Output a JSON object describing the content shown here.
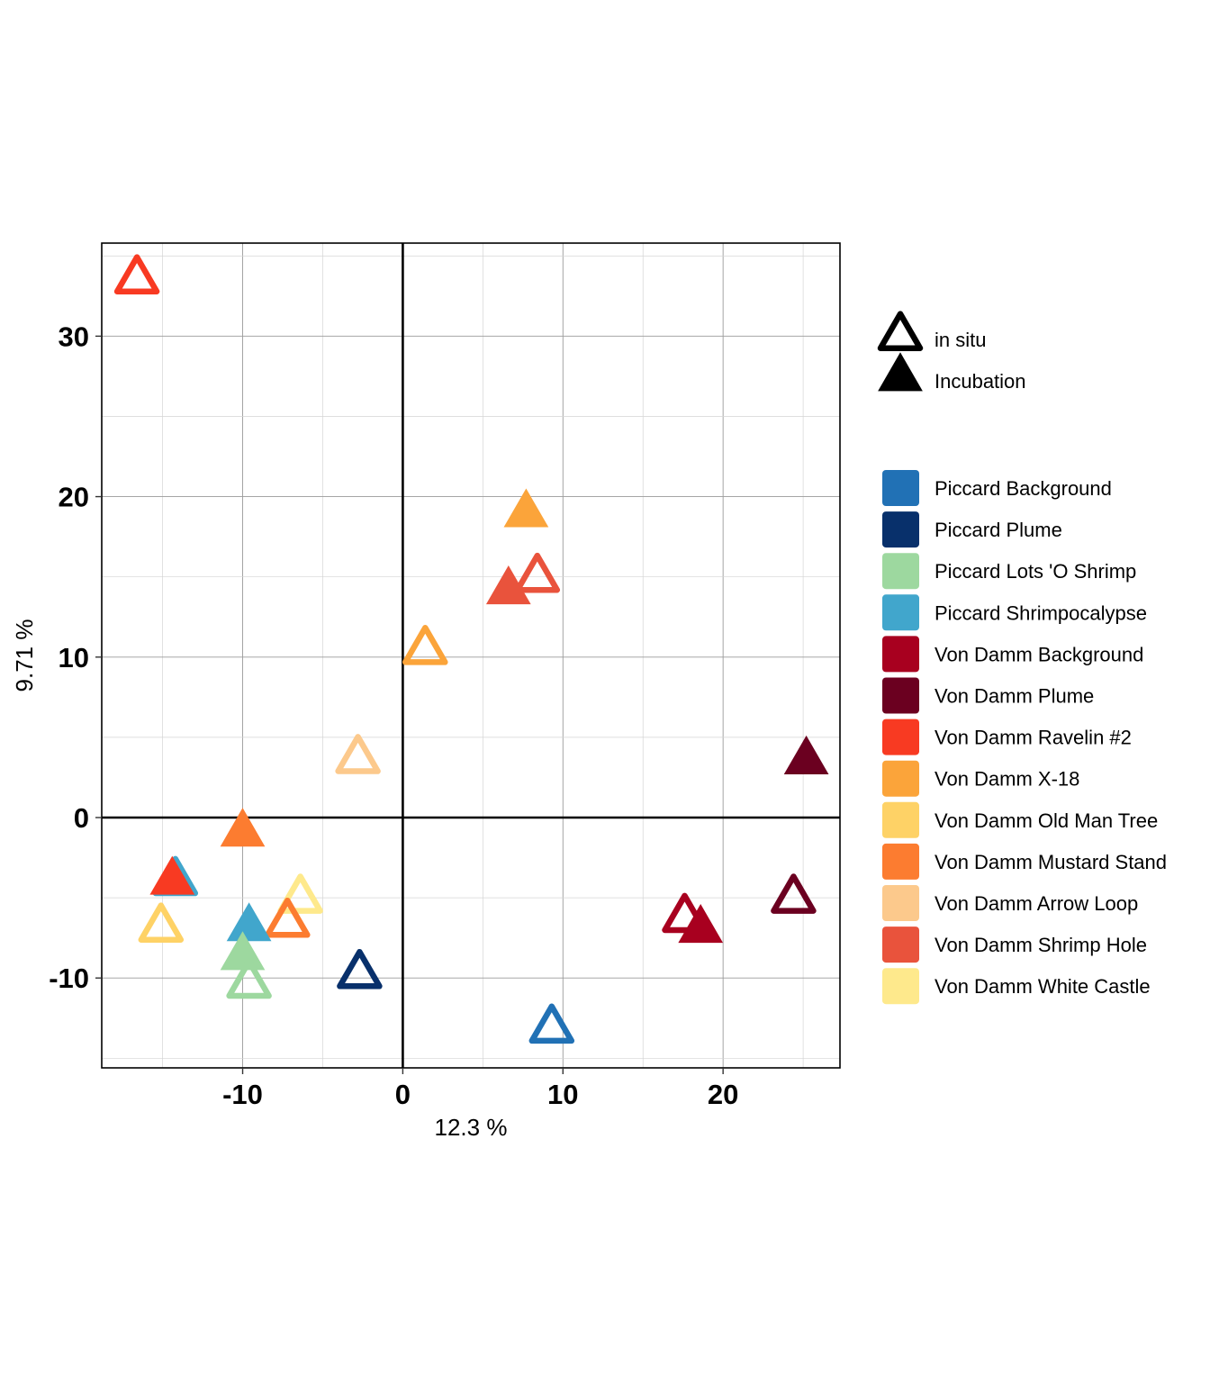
{
  "chart_data": {
    "type": "scatter",
    "xlabel": "12.3 %",
    "ylabel": "9.71 %",
    "xlim": [
      -18.8,
      27.3
    ],
    "ylim": [
      -15.6,
      35.8
    ],
    "x_ticks": [
      -10,
      0,
      10,
      20
    ],
    "y_ticks": [
      -10,
      0,
      10,
      20,
      30
    ],
    "x_tick_labels": [
      "-10",
      "0",
      "10",
      "20"
    ],
    "y_tick_labels": [
      "-10",
      "0",
      "10",
      "20",
      "30"
    ],
    "grid": true,
    "legend_position": "right",
    "shape_legend": [
      {
        "label": "in situ",
        "shape": "open-triangle"
      },
      {
        "label": "Incubation",
        "shape": "filled-triangle"
      }
    ],
    "groups": [
      {
        "name": "Piccard Background",
        "color": "#2171B5"
      },
      {
        "name": "Piccard Plume",
        "color": "#08306B"
      },
      {
        "name": "Piccard Lots 'O Shrimp",
        "color": "#9DD89F"
      },
      {
        "name": "Piccard Shrimpocalypse",
        "color": "#41A6CC"
      },
      {
        "name": "Von Damm Background",
        "color": "#A8001F"
      },
      {
        "name": "Von Damm Plume",
        "color": "#6B0020"
      },
      {
        "name": "Von Damm Ravelin #2",
        "color": "#F83A22"
      },
      {
        "name": "Von Damm X-18",
        "color": "#FBA43A"
      },
      {
        "name": "Von Damm Old Man Tree",
        "color": "#FED266"
      },
      {
        "name": "Von Damm Mustard Stand",
        "color": "#FC7C30"
      },
      {
        "name": "Von Damm Arrow Loop",
        "color": "#FCC98C"
      },
      {
        "name": "Von Damm Shrimp Hole",
        "color": "#E9533C"
      },
      {
        "name": "Von Damm White Castle",
        "color": "#FEE98C"
      }
    ],
    "points": [
      {
        "group": "Von Damm Ravelin #2",
        "type": "in situ",
        "x": -16.6,
        "y": 33.5
      },
      {
        "group": "Von Damm X-18",
        "type": "Incubation",
        "x": 7.7,
        "y": 18.9
      },
      {
        "group": "Von Damm Shrimp Hole",
        "type": "in situ",
        "x": 8.4,
        "y": 14.9
      },
      {
        "group": "Von Damm Shrimp Hole",
        "type": "Incubation",
        "x": 6.6,
        "y": 14.1
      },
      {
        "group": "Von Damm X-18",
        "type": "in situ",
        "x": 1.4,
        "y": 10.4
      },
      {
        "group": "Von Damm Arrow Loop",
        "type": "in situ",
        "x": -2.8,
        "y": 3.6
      },
      {
        "group": "Von Damm Plume",
        "type": "Incubation",
        "x": 25.2,
        "y": 3.5
      },
      {
        "group": "Von Damm Mustard Stand",
        "type": "Incubation",
        "x": -10.0,
        "y": -1.0
      },
      {
        "group": "Piccard Shrimpocalypse",
        "type": "in situ",
        "x": -14.2,
        "y": -4.0
      },
      {
        "group": "Von Damm Ravelin #2",
        "type": "Incubation",
        "x": -14.4,
        "y": -4.0
      },
      {
        "group": "Von Damm White Castle",
        "type": "in situ",
        "x": -6.4,
        "y": -5.1
      },
      {
        "group": "Von Damm Plume",
        "type": "in situ",
        "x": 24.4,
        "y": -5.1
      },
      {
        "group": "Von Damm Background",
        "type": "in situ",
        "x": 17.6,
        "y": -6.3
      },
      {
        "group": "Von Damm Background",
        "type": "Incubation",
        "x": 18.6,
        "y": -7.0
      },
      {
        "group": "Von Damm Mustard Stand",
        "type": "in situ",
        "x": -7.2,
        "y": -6.6
      },
      {
        "group": "Von Damm Old Man Tree",
        "type": "in situ",
        "x": -15.1,
        "y": -6.9
      },
      {
        "group": "Piccard Shrimpocalypse",
        "type": "Incubation",
        "x": -9.6,
        "y": -6.9
      },
      {
        "group": "Piccard Lots 'O Shrimp",
        "type": "Incubation",
        "x": -10.0,
        "y": -8.7
      },
      {
        "group": "Piccard Plume",
        "type": "in situ",
        "x": -2.7,
        "y": -9.8
      },
      {
        "group": "Piccard Lots 'O Shrimp",
        "type": "in situ",
        "x": -9.6,
        "y": -10.4
      },
      {
        "group": "Piccard Background",
        "type": "in situ",
        "x": 9.3,
        "y": -13.2
      }
    ]
  }
}
